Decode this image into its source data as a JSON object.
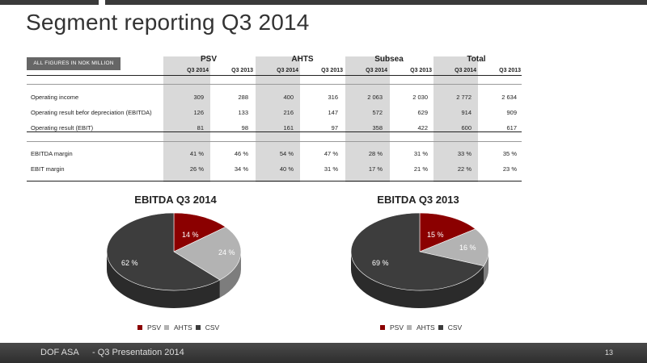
{
  "title": "Segment reporting Q3 2014",
  "table": {
    "badge": "ALL FIGURES IN NOK MILLION",
    "segments": [
      "PSV",
      "AHTS",
      "Subsea",
      "Total"
    ],
    "periods": [
      "Q3 2014",
      "Q3 2013",
      "Q3 2014",
      "Q3 2013",
      "Q3 2014",
      "Q3 2013",
      "Q3 2014",
      "Q3 2013"
    ],
    "rows": [
      {
        "label": "Operating income",
        "values": [
          "309",
          "288",
          "400",
          "316",
          "2 063",
          "2 030",
          "2 772",
          "2 634"
        ]
      },
      {
        "label": "Operating result befor depreciation (EBITDA)",
        "values": [
          "126",
          "133",
          "216",
          "147",
          "572",
          "629",
          "914",
          "909"
        ]
      },
      {
        "label": "Operating result (EBIT)",
        "values": [
          "81",
          "98",
          "161",
          "97",
          "358",
          "422",
          "600",
          "617"
        ]
      },
      {
        "label": "EBITDA margin",
        "values": [
          "41 %",
          "46 %",
          "54 %",
          "47 %",
          "28 %",
          "31 %",
          "33 %",
          "35 %"
        ]
      },
      {
        "label": "EBIT margin",
        "values": [
          "26 %",
          "34 %",
          "40 %",
          "31 %",
          "17 %",
          "21 %",
          "22 %",
          "23 %"
        ]
      }
    ]
  },
  "colors": {
    "psv": "#8b0000",
    "ahts": "#b3b3b3",
    "csv": "#3d3d3d"
  },
  "chart_data": [
    {
      "type": "pie",
      "title": "EBITDA Q3 2014",
      "categories": [
        "PSV",
        "AHTS",
        "CSV"
      ],
      "values": [
        14,
        24,
        62
      ],
      "labels": [
        "14 %",
        "24 %",
        "62 %"
      ],
      "legend": "bottom"
    },
    {
      "type": "pie",
      "title": "EBITDA Q3 2013",
      "categories": [
        "PSV",
        "AHTS",
        "CSV"
      ],
      "values": [
        15,
        16,
        69
      ],
      "labels": [
        "15 %",
        "16 %",
        "69 %"
      ],
      "legend": "bottom"
    }
  ],
  "footer": {
    "company": "DOF ASA",
    "presentation": "- Q3 Presentation 2014",
    "page": "13"
  }
}
